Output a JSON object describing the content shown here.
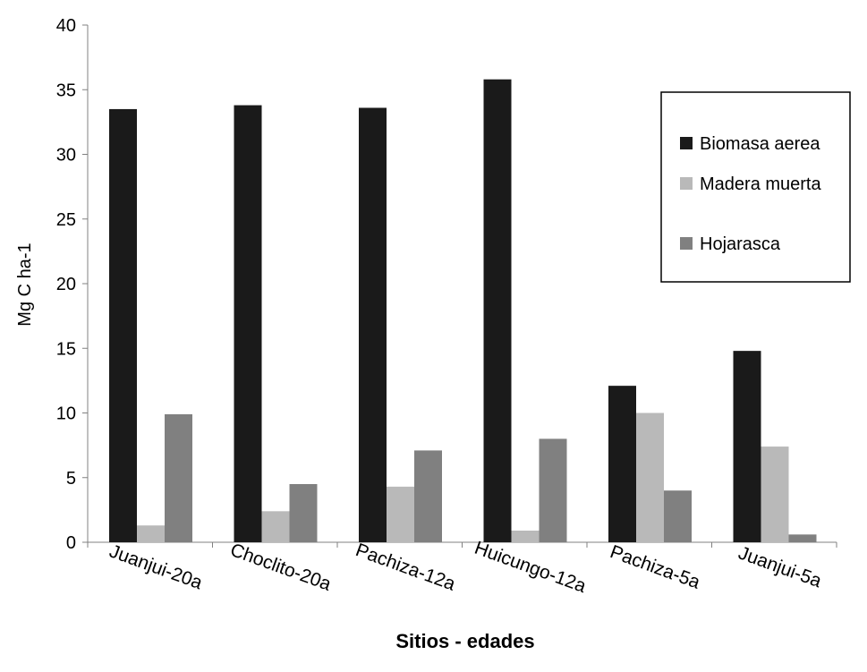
{
  "chart_data": {
    "type": "bar",
    "title": "",
    "xlabel": "Sitios - edades",
    "ylabel": "Mg C ha-1",
    "ylim": [
      0,
      40
    ],
    "yticks": [
      0,
      5,
      10,
      15,
      20,
      25,
      30,
      35,
      40
    ],
    "categories": [
      "Juanjui-20a",
      "Choclito-20a",
      "Pachiza-12a",
      "Huicungo-12a",
      "Pachiza-5a",
      "Juanjui-5a"
    ],
    "series": [
      {
        "name": "Biomasa aerea",
        "color": "#1a1a1a",
        "values": [
          33.5,
          33.8,
          33.6,
          35.8,
          12.1,
          14.8
        ]
      },
      {
        "name": "Madera muerta",
        "color": "#b9b9b9",
        "values": [
          1.3,
          2.4,
          4.3,
          0.9,
          10.0,
          7.4
        ]
      },
      {
        "name": "Hojarasca",
        "color": "#808080",
        "values": [
          9.9,
          4.5,
          7.1,
          8.0,
          4.0,
          0.6
        ]
      }
    ],
    "legend_position": "top-right",
    "grid": false
  }
}
